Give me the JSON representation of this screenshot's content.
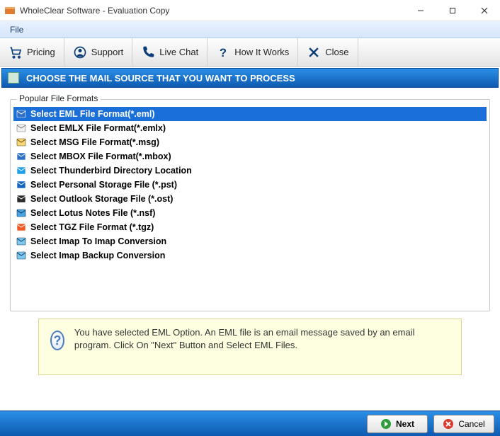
{
  "window": {
    "title": "WholeClear Software - Evaluation Copy"
  },
  "menubar": {
    "file": "File"
  },
  "toolbar": {
    "pricing": "Pricing",
    "support": "Support",
    "livechat": "Live Chat",
    "how": "How It Works",
    "close": "Close"
  },
  "instruction": "CHOOSE THE MAIL SOURCE THAT YOU WANT TO PROCESS",
  "group": {
    "legend": "Popular File Formats"
  },
  "formats": [
    {
      "label": "Select EML File Format(*.eml)",
      "icon_bg": "#2f71c7",
      "icon_fg": "#ffffff",
      "selected": true
    },
    {
      "label": "Select EMLX File Format(*.emlx)",
      "icon_bg": "#f0f0f0",
      "icon_fg": "#777777",
      "selected": false
    },
    {
      "label": "Select MSG File Format(*.msg)",
      "icon_bg": "#f6d77a",
      "icon_fg": "#6b4a00",
      "selected": false
    },
    {
      "label": "Select MBOX File Format(*.mbox)",
      "icon_bg": "#2f71c7",
      "icon_fg": "#ffffff",
      "selected": false
    },
    {
      "label": "Select Thunderbird Directory Location",
      "icon_bg": "#1fa0e8",
      "icon_fg": "#ffffff",
      "selected": false
    },
    {
      "label": "Select Personal Storage File (*.pst)",
      "icon_bg": "#1565c0",
      "icon_fg": "#ffffff",
      "selected": false
    },
    {
      "label": "Select Outlook Storage File (*.ost)",
      "icon_bg": "#2b2b2b",
      "icon_fg": "#ffffff",
      "selected": false
    },
    {
      "label": "Select Lotus Notes File (*.nsf)",
      "icon_bg": "#4aa3e0",
      "icon_fg": "#0b3a60",
      "selected": false
    },
    {
      "label": "Select TGZ File Format (*.tgz)",
      "icon_bg": "#f15a24",
      "icon_fg": "#ffffff",
      "selected": false
    },
    {
      "label": "Select Imap To Imap Conversion",
      "icon_bg": "#7ec8f0",
      "icon_fg": "#0b3a60",
      "selected": false
    },
    {
      "label": "Select Imap Backup Conversion",
      "icon_bg": "#7ec8f0",
      "icon_fg": "#0b3a60",
      "selected": false
    }
  ],
  "info": {
    "text": "You have selected EML Option. An EML file is an email message saved by an email program. Click On \"Next\" Button and Select EML Files."
  },
  "footer": {
    "next": "Next",
    "cancel": "Cancel"
  },
  "colors": {
    "header_gradient_top": "#2b8fe6",
    "header_gradient_bottom": "#0e5ab1",
    "selection": "#1a6fd8",
    "info_bg": "#feffe0"
  }
}
